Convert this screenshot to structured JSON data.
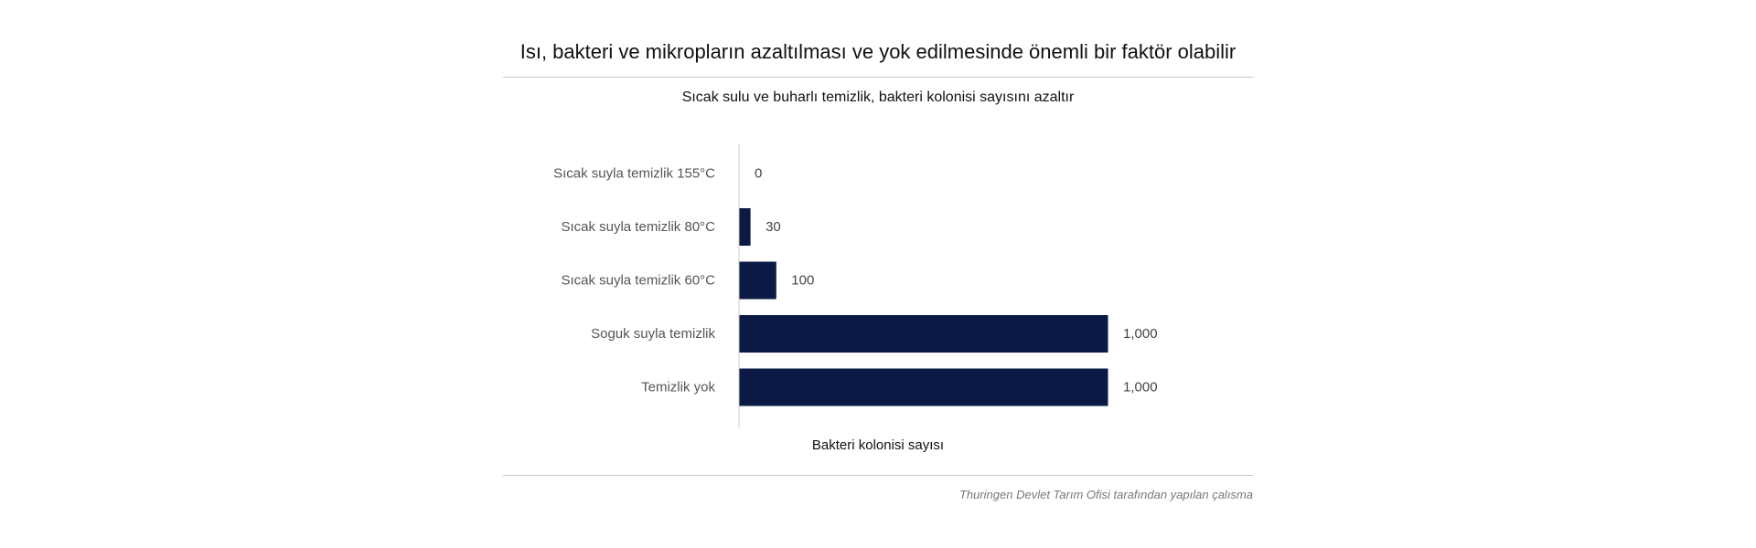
{
  "title": "Isı, bakteri ve mikropların azaltılması ve yok edilmesinde önemli bir faktör olabilir",
  "source_note": "Thuringen Devlet Tarım Ofisi tarafından yapılan çalısma",
  "colors": {
    "bar": "#0b1a44",
    "axis": "#c8c8c8",
    "label": "#555555",
    "value": "#444444"
  },
  "chart_data": {
    "type": "bar",
    "orientation": "horizontal",
    "title": "Sıcak sulu ve buharlı temizlik, bakteri kolonisi sayısını azaltır",
    "xlabel": "Bakteri kolonisi sayısı",
    "ylabel": "",
    "categories": [
      "Sıcak suyla temizlik 155°C",
      "Sıcak suyla temizlik 80°C",
      "Sıcak suyla temizlik 60°C",
      "Soguk suyla temizlik",
      "Temizlik yok"
    ],
    "values": [
      0,
      30,
      100,
      1000,
      1000
    ],
    "value_labels": [
      "0",
      "30",
      "100",
      "1,000",
      "1,000"
    ],
    "xlim": [
      0,
      1000
    ],
    "grid": false,
    "legend": "none"
  }
}
